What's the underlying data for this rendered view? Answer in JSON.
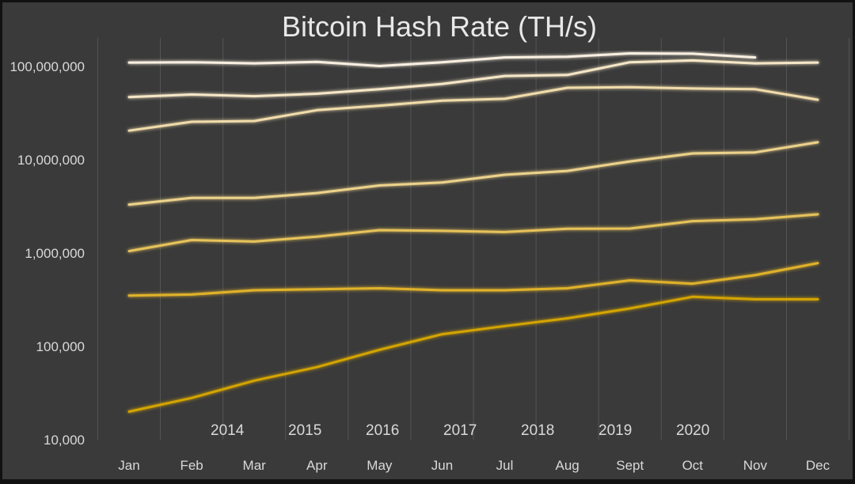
{
  "chart_data": {
    "type": "line",
    "title": "Bitcoin Hash Rate (TH/s)",
    "xlabel": "",
    "ylabel": "",
    "yscale": "log",
    "ylim": [
      10000,
      200000000
    ],
    "grid": "vertical",
    "legend_position": "bottom-inside",
    "categories": [
      "Jan",
      "Feb",
      "Mar",
      "Apr",
      "May",
      "Jun",
      "Jul",
      "Aug",
      "Sept",
      "Oct",
      "Nov",
      "Dec"
    ],
    "y_ticks": [
      {
        "value": 10000,
        "label": "10,000"
      },
      {
        "value": 100000,
        "label": "100,000"
      },
      {
        "value": 1000000,
        "label": "1,000,000"
      },
      {
        "value": 10000000,
        "label": "10,000,000"
      },
      {
        "value": 100000000,
        "label": "100,000,000"
      }
    ],
    "series": [
      {
        "name": "2014",
        "color": "#d4a400",
        "values": [
          20000,
          28000,
          43000,
          60000,
          92000,
          135000,
          165000,
          200000,
          255000,
          340000,
          320000,
          320000
        ]
      },
      {
        "name": "2015",
        "color": "#e0b22c",
        "values": [
          350000,
          360000,
          400000,
          410000,
          420000,
          400000,
          400000,
          420000,
          510000,
          470000,
          580000,
          780000
        ]
      },
      {
        "name": "2016",
        "color": "#e6c25a",
        "values": [
          1050000,
          1380000,
          1330000,
          1500000,
          1760000,
          1730000,
          1680000,
          1820000,
          1830000,
          2200000,
          2300000,
          2600000
        ]
      },
      {
        "name": "2017",
        "color": "#ecd28a",
        "values": [
          3300000,
          3900000,
          3900000,
          4400000,
          5300000,
          5700000,
          6900000,
          7600000,
          9600000,
          11700000,
          12000000,
          15400000
        ]
      },
      {
        "name": "2018",
        "color": "#f0dcaa",
        "values": [
          20500000,
          25500000,
          26000000,
          34000000,
          38000000,
          43000000,
          45000000,
          59000000,
          60000000,
          58000000,
          57000000,
          44000000
        ]
      },
      {
        "name": "2019",
        "color": "#f5e6c6",
        "values": [
          47000000,
          50000000,
          48000000,
          51000000,
          57000000,
          65000000,
          79000000,
          81000000,
          111000000,
          116000000,
          108000000,
          110000000
        ]
      },
      {
        "name": "2020",
        "color": "#f8efe0",
        "values": [
          110000000,
          111000000,
          108000000,
          112000000,
          101000000,
          111000000,
          125000000,
          127000000,
          138000000,
          137000000,
          125000000,
          null
        ]
      }
    ]
  }
}
